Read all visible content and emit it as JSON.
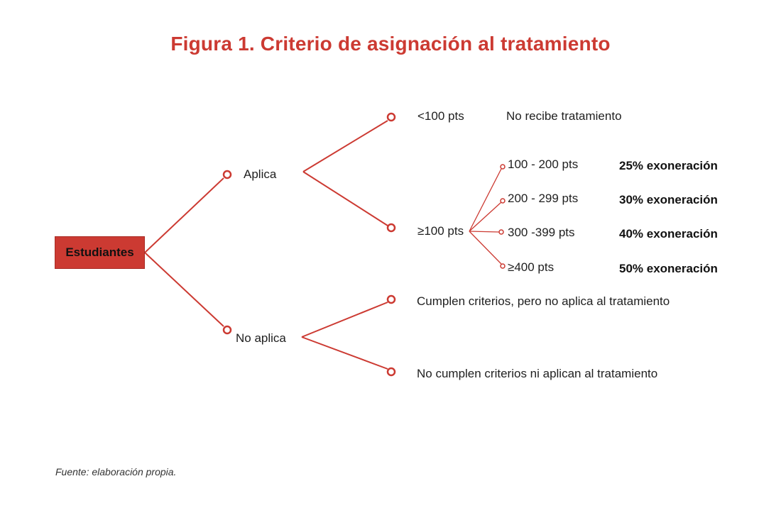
{
  "title": "Figura 1. Criterio de asignación al tratamiento",
  "root": "Estudiantes",
  "branches": {
    "aplica": {
      "label": "Aplica",
      "low": {
        "range": "<100 pts",
        "result": "No recibe tratamiento"
      },
      "high": {
        "range": "≥100 pts",
        "tiers": [
          {
            "range": "100 - 200 pts",
            "result": "25% exoneración"
          },
          {
            "range": "200 - 299 pts",
            "result": "30% exoneración"
          },
          {
            "range": "300 -399 pts",
            "result": "40% exoneración"
          },
          {
            "range": "≥400 pts",
            "result": "50% exoneración"
          }
        ]
      }
    },
    "no_aplica": {
      "label": "No aplica",
      "outcomes": [
        "Cumplen criterios, pero no aplica al tratamiento",
        "No cumplen criterios ni aplican al tratamiento"
      ]
    }
  },
  "source": "Fuente: elaboración propia.",
  "colors": {
    "accent": "#cc3a32",
    "text": "#1f1f1f"
  }
}
